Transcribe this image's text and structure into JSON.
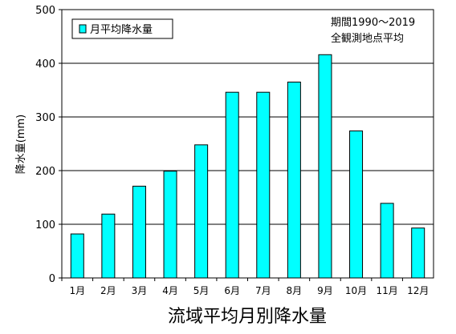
{
  "chart_data": {
    "type": "bar",
    "title": "流域平均月別降水量",
    "ylabel": "降水量(mm)",
    "xlabel": "",
    "legend": {
      "label": "月平均降水量",
      "position": "top-left"
    },
    "annotation": [
      "期間1990〜2019",
      "全観測地点平均"
    ],
    "categories": [
      "1月",
      "2月",
      "3月",
      "4月",
      "5月",
      "6月",
      "7月",
      "8月",
      "9月",
      "10月",
      "11月",
      "12月"
    ],
    "values": [
      82,
      119,
      171,
      199,
      248,
      346,
      346,
      365,
      416,
      274,
      139,
      93
    ],
    "ylim": [
      0,
      500
    ],
    "yticks": [
      0,
      100,
      200,
      300,
      400,
      500
    ],
    "grid": true,
    "colors": {
      "bar": "#00ffff",
      "bar_stroke": "#000000",
      "grid": "#000000"
    }
  }
}
